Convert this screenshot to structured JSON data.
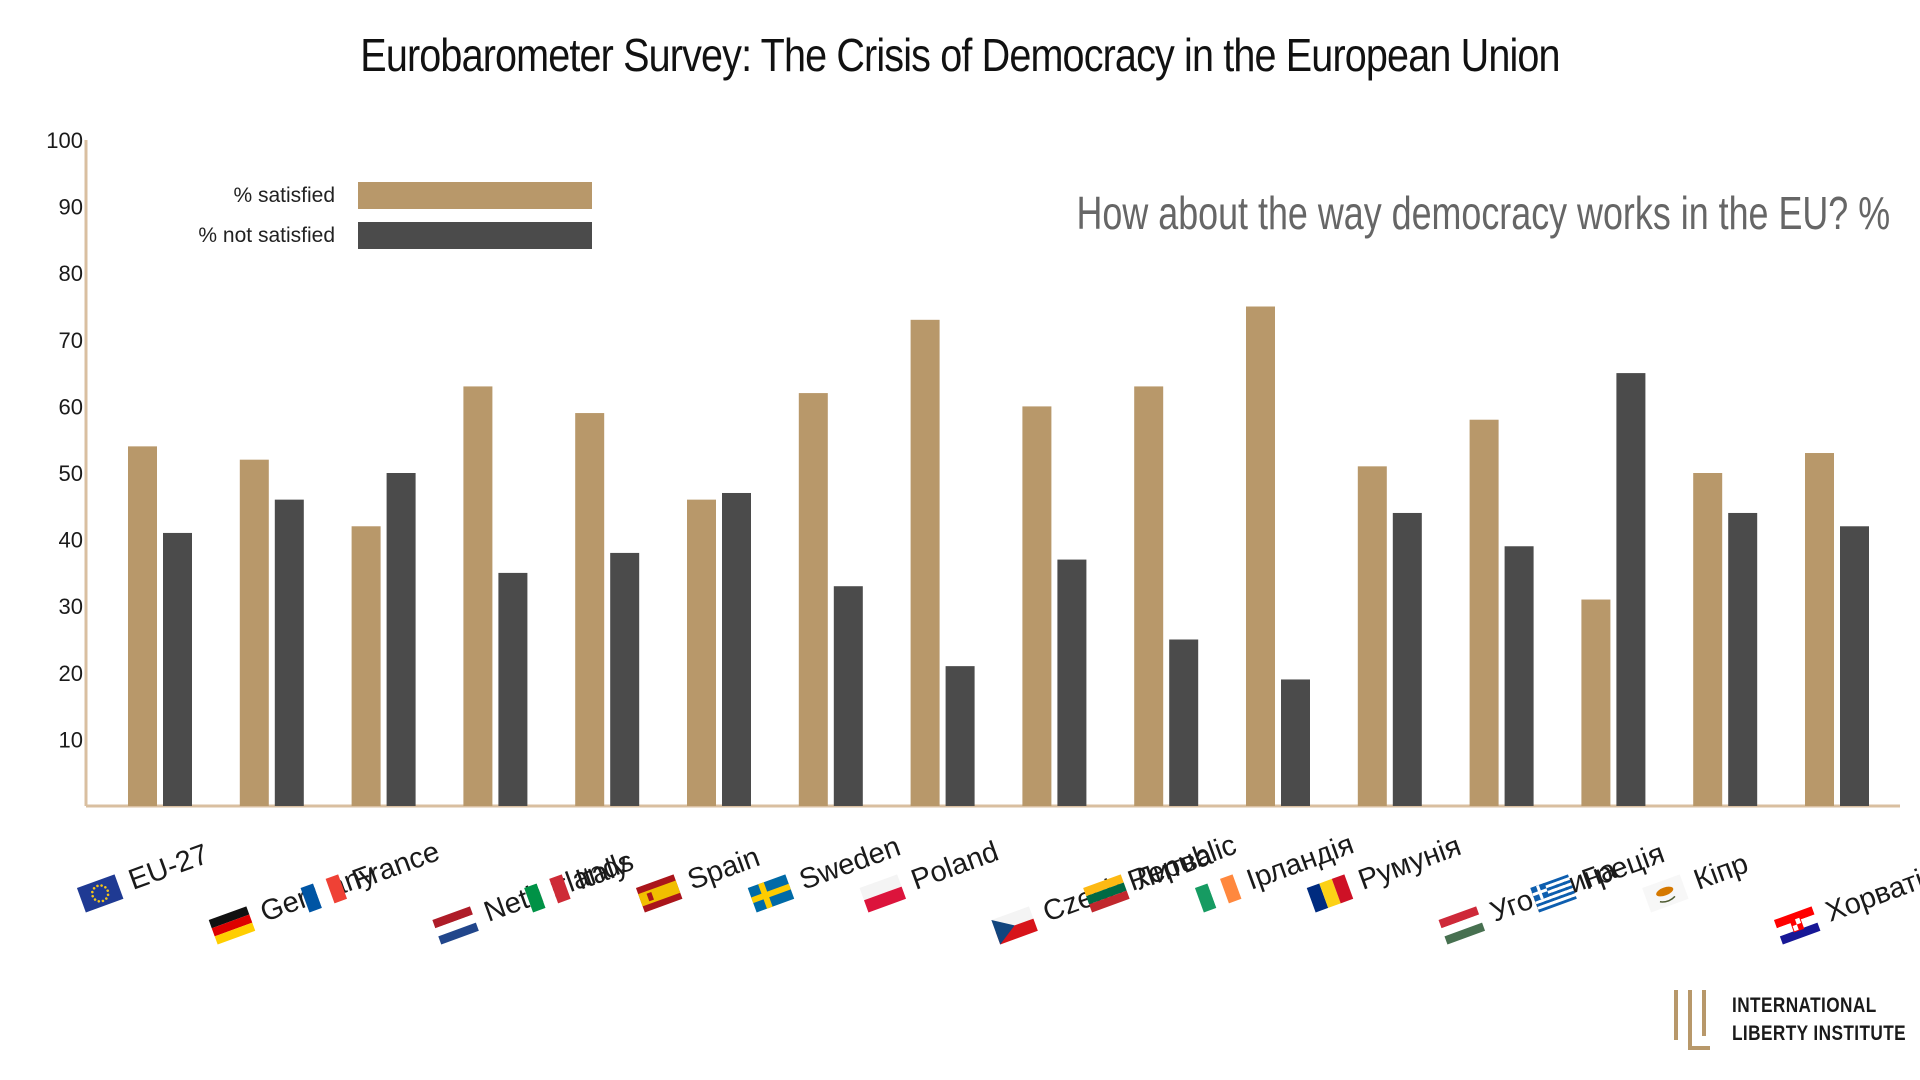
{
  "chart_data": {
    "type": "bar",
    "title": "Eurobarometer Survey: The Crisis of Democracy in the European Union",
    "subtitle": "How about the way democracy works in the EU? %",
    "categories": [
      "EU-27",
      "Germany",
      "France",
      "Netherlands",
      "Italy",
      "Spain",
      "Sweden",
      "Poland",
      "Czech Republic",
      "Литва",
      "Ірландія",
      "Румунія",
      "Угорщина",
      "Греція",
      "Кіпр",
      "Хорватія"
    ],
    "series": [
      {
        "name": "% satisfied",
        "color": "#B8986A",
        "values": [
          54,
          52,
          42,
          63,
          59,
          46,
          62,
          73,
          60,
          63,
          75,
          51,
          58,
          31,
          50,
          53
        ]
      },
      {
        "name": "% not satisfied",
        "color": "#4B4B4B",
        "values": [
          41,
          46,
          50,
          35,
          38,
          47,
          33,
          21,
          37,
          25,
          19,
          44,
          39,
          65,
          44,
          42
        ]
      }
    ],
    "ylim": [
      0,
      100
    ],
    "yticks": [
      10,
      20,
      30,
      40,
      50,
      60,
      70,
      80,
      90,
      100
    ],
    "legend_position": "top-left",
    "grid": false,
    "axis_color": "#D9BFA0",
    "flags": [
      "eu-flag-icon",
      "germany-flag-icon",
      "france-flag-icon",
      "netherlands-flag-icon",
      "italy-flag-icon",
      "spain-flag-icon",
      "sweden-flag-icon",
      "poland-flag-icon",
      "czech-flag-icon",
      "lithuania-flag-icon",
      "ireland-flag-icon",
      "romania-flag-icon",
      "hungary-flag-icon",
      "greece-flag-icon",
      "cyprus-flag-icon",
      "croatia-flag-icon"
    ]
  },
  "logo": {
    "line1": "INTERNATIONAL",
    "line2": "LIBERTY INSTITUTE",
    "color": "#B8986A"
  }
}
